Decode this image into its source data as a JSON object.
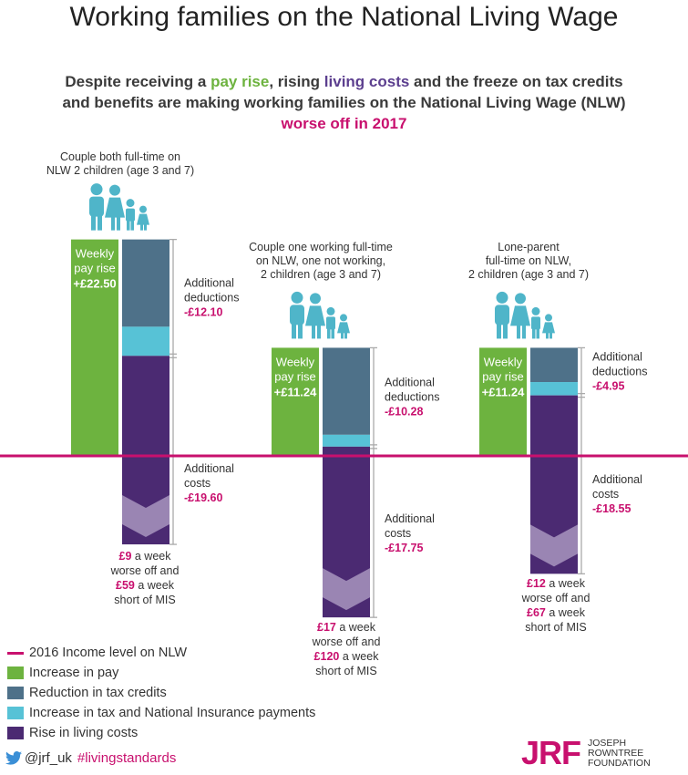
{
  "title": "Working families on the National Living Wage",
  "subtitle": {
    "part1": "Despite receiving a ",
    "pay_rise": "pay rise",
    "part2": ", rising ",
    "living_costs": "living costs",
    "part3": " and the freeze on tax credits and benefits are making working families on the National Living Wage (NLW) ",
    "worse_off": "worse off in 2017"
  },
  "colors": {
    "pay": "#6db33f",
    "tax_credits": "#4e7189",
    "tax_ni": "#57c2d6",
    "living_costs": "#4b2a72",
    "living_costs_light": "#9a85b3",
    "baseline": "#c8106e",
    "accent_text": "#c8106e"
  },
  "chart_data": {
    "type": "bar",
    "baseline_label": "2016 Income level on NLW",
    "groups": [
      {
        "household": [
          "Couple both full-time on",
          "NLW 2 children (age 3 and 7)"
        ],
        "pay_rise_label": [
          "Weekly",
          "pay rise"
        ],
        "pay_rise_value": "+£22.50",
        "pay_rise": 22.5,
        "deductions_label": [
          "Additional",
          "deductions"
        ],
        "deductions_value": "-£12.10",
        "deductions": 12.1,
        "costs_label": [
          "Additional",
          "costs"
        ],
        "costs_value": "-£19.60",
        "costs": 19.6,
        "result": [
          "£9",
          " a week",
          "worse off and",
          "£59",
          " a week",
          "short of MIS"
        ]
      },
      {
        "household": [
          "Couple one working full-time",
          "on NLW, one not working,",
          "2 children (age 3 and 7)"
        ],
        "pay_rise_label": [
          "Weekly",
          "pay rise"
        ],
        "pay_rise_value": "+£11.24",
        "pay_rise": 11.24,
        "deductions_label": [
          "Additional",
          "deductions"
        ],
        "deductions_value": "-£10.28",
        "deductions": 10.28,
        "costs_label": [
          "Additional",
          "costs"
        ],
        "costs_value": "-£17.75",
        "costs": 17.75,
        "result": [
          "£17",
          " a week",
          "worse off and",
          "£120",
          " a week",
          "short of MIS"
        ]
      },
      {
        "household": [
          "Lone-parent",
          "full-time on NLW,",
          "2 children (age 3 and 7)"
        ],
        "pay_rise_label": [
          "Weekly",
          "pay rise"
        ],
        "pay_rise_value": "+£11.24",
        "pay_rise": 11.24,
        "deductions_label": [
          "Additional",
          "deductions"
        ],
        "deductions_value": "-£4.95",
        "deductions": 4.95,
        "costs_label": [
          "Additional",
          "costs"
        ],
        "costs_value": "-£18.55",
        "costs": 18.55,
        "result": [
          "£12",
          " a week",
          "worse off and",
          "£67",
          " a week",
          "short of MIS"
        ]
      }
    ]
  },
  "legend": [
    {
      "label": "2016 Income level on NLW",
      "kind": "line",
      "color": "#c8106e"
    },
    {
      "label": "Increase in pay",
      "kind": "box",
      "color": "#6db33f"
    },
    {
      "label": "Reduction in tax credits",
      "kind": "box",
      "color": "#4e7189"
    },
    {
      "label": "Increase in tax and National Insurance payments",
      "kind": "box",
      "color": "#57c2d6"
    },
    {
      "label": "Rise in living costs",
      "kind": "box",
      "color": "#4b2a72"
    }
  ],
  "footer": {
    "handle": "@jrf_uk",
    "hashtag": "#livingstandards",
    "logo_mark": "JRF",
    "logo_name": [
      "JOSEPH",
      "ROWNTREE",
      "FOUNDATION"
    ]
  },
  "icons": [
    "family-icon",
    "twitter-icon"
  ]
}
